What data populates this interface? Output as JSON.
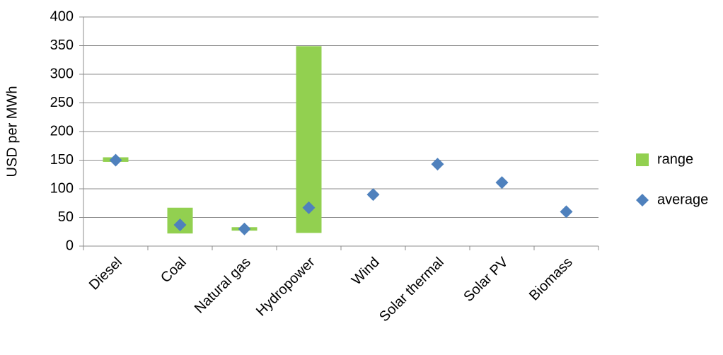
{
  "chart_data": {
    "type": "range-scatter",
    "y_label": "USD per MWh",
    "categories": [
      "Diesel",
      "Coal",
      "Natural gas",
      "Hydropower",
      "Wind",
      "Solar thermal",
      "Solar PV",
      "Biomass"
    ],
    "series": [
      {
        "name": "range",
        "color": "#92d050",
        "low": [
          147,
          22,
          27,
          23,
          null,
          null,
          null,
          null
        ],
        "high": [
          155,
          67,
          33,
          349,
          null,
          null,
          null,
          null
        ]
      },
      {
        "name": "average",
        "color": "#4f81bd",
        "values": [
          150,
          37,
          30,
          67,
          90,
          143,
          111,
          60
        ]
      }
    ],
    "ylim": [
      0,
      400
    ],
    "yticks": [
      0,
      50,
      100,
      150,
      200,
      250,
      300,
      350,
      400
    ],
    "grid": true
  }
}
